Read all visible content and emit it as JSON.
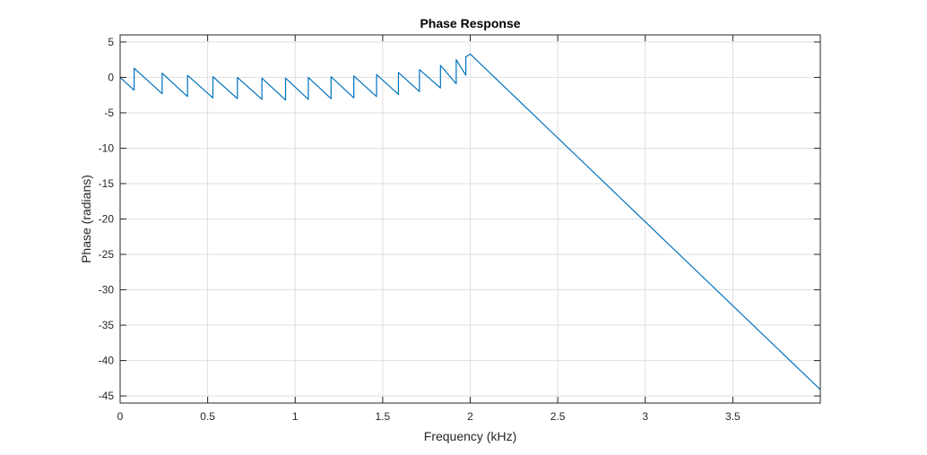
{
  "chart_data": {
    "type": "line",
    "title": "Phase Response",
    "xlabel": "Frequency (kHz)",
    "ylabel": "Phase (radians)",
    "xlim": [
      0,
      4.0
    ],
    "ylim": [
      -46,
      6
    ],
    "x_ticks": [
      0,
      0.5,
      1,
      1.5,
      2,
      2.5,
      3,
      3.5
    ],
    "x_tick_labels": [
      "0",
      "0.5",
      "1",
      "1.5",
      "2",
      "2.5",
      "3",
      "3.5"
    ],
    "y_ticks": [
      5,
      0,
      -5,
      -10,
      -15,
      -20,
      -25,
      -30,
      -35,
      -40,
      -45
    ],
    "y_tick_labels": [
      "5",
      "0",
      "-5",
      "-10",
      "-15",
      "-20",
      "-25",
      "-30",
      "-35",
      "-40",
      "-45"
    ],
    "grid": true,
    "colors": {
      "line": "#0072BD",
      "grid": "#dfdfdf",
      "axes": "#262626"
    },
    "series": [
      {
        "x": [
          0,
          0.08,
          0.08,
          0.24,
          0.24,
          0.385,
          0.385,
          0.53,
          0.53,
          0.67,
          0.67,
          0.81,
          0.81,
          0.945,
          0.945,
          1.075,
          1.075,
          1.205,
          1.205,
          1.335,
          1.335,
          1.465,
          1.465,
          1.59,
          1.59,
          1.71,
          1.71,
          1.83,
          1.83,
          1.92,
          1.92,
          1.975,
          1.975,
          2.0,
          4.0
        ],
        "y": [
          0,
          -1.8,
          1.3,
          -2.3,
          0.6,
          -2.7,
          0.3,
          -2.9,
          0.1,
          -3.0,
          0,
          -3.1,
          -0.1,
          -3.2,
          -0.1,
          -3.1,
          0,
          -3.0,
          0.1,
          -2.9,
          0.2,
          -2.7,
          0.4,
          -2.4,
          0.7,
          -2.0,
          1.1,
          -1.5,
          1.7,
          -0.9,
          2.5,
          0.3,
          2.9,
          3.3,
          -44.1
        ]
      }
    ]
  }
}
